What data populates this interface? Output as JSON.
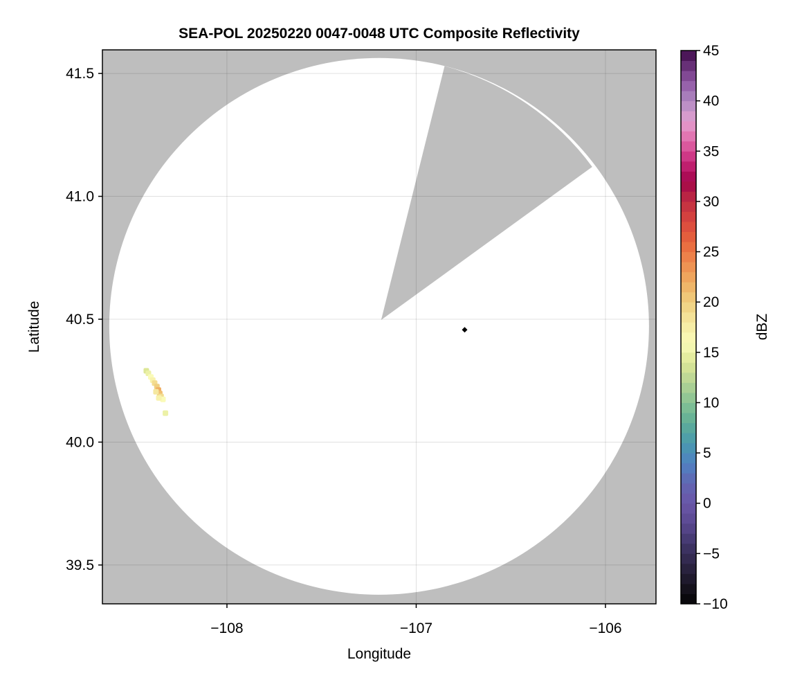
{
  "chart_data": {
    "type": "heatmap",
    "title": "SEA-POL 20250220 0047-0048 UTC Composite Reflectivity",
    "xlabel": "Longitude",
    "ylabel": "Latitude",
    "xlim": [
      -108.658,
      -105.733
    ],
    "ylim": [
      39.342,
      41.596
    ],
    "xticks": [
      -108,
      -107,
      -106
    ],
    "xtick_labels": [
      "−108",
      "−107",
      "−106"
    ],
    "yticks": [
      39.5,
      40.0,
      40.5,
      41.0,
      41.5
    ],
    "ytick_labels": [
      "39.5",
      "40.0",
      "40.5",
      "41.0",
      "41.5"
    ],
    "grid": true,
    "background_color": "#bebebe",
    "coverage_color": "#ffffff",
    "radar_coverage": {
      "center": [
        -107.196,
        40.471
      ],
      "radius_lon_deg": 1.426,
      "radius_lat_deg": 1.092
    },
    "blocked_sector": {
      "apex": [
        -107.185,
        40.497
      ],
      "edge_start": [
        -106.85,
        41.53
      ],
      "edge_end": [
        -106.07,
        41.12
      ]
    },
    "marker": {
      "lon": -106.744,
      "lat": 40.457,
      "shape": "diamond",
      "color": "#000000"
    },
    "echo_cells": [
      {
        "lon": -108.426,
        "lat": 40.29,
        "dbz": 14
      },
      {
        "lon": -108.415,
        "lat": 40.28,
        "dbz": 15
      },
      {
        "lon": -108.402,
        "lat": 40.265,
        "dbz": 16
      },
      {
        "lon": -108.392,
        "lat": 40.252,
        "dbz": 17
      },
      {
        "lon": -108.382,
        "lat": 40.24,
        "dbz": 19
      },
      {
        "lon": -108.37,
        "lat": 40.226,
        "dbz": 20
      },
      {
        "lon": -108.362,
        "lat": 40.212,
        "dbz": 22
      },
      {
        "lon": -108.355,
        "lat": 40.198,
        "dbz": 21
      },
      {
        "lon": -108.348,
        "lat": 40.186,
        "dbz": 19
      },
      {
        "lon": -108.338,
        "lat": 40.174,
        "dbz": 16
      },
      {
        "lon": -108.375,
        "lat": 40.205,
        "dbz": 18
      },
      {
        "lon": -108.36,
        "lat": 40.18,
        "dbz": 17
      },
      {
        "lon": -108.325,
        "lat": 40.118,
        "dbz": 15
      }
    ],
    "colorbar": {
      "label": "dBZ",
      "range": [
        -10,
        45
      ],
      "bin_width": 1,
      "ticks": [
        -10,
        -5,
        0,
        5,
        10,
        15,
        20,
        25,
        30,
        35,
        40,
        45
      ],
      "tick_labels": [
        "−10",
        "−5",
        "0",
        "5",
        "10",
        "15",
        "20",
        "25",
        "30",
        "35",
        "40",
        "45"
      ],
      "color_stops": [
        [
          -10,
          "#050505"
        ],
        [
          -8,
          "#1a1624"
        ],
        [
          -6,
          "#2e2647"
        ],
        [
          -4,
          "#40366a"
        ],
        [
          -2,
          "#5a4890"
        ],
        [
          0,
          "#6a56a8"
        ],
        [
          2,
          "#6266b2"
        ],
        [
          4,
          "#4f82c2"
        ],
        [
          6,
          "#4a9aae"
        ],
        [
          8,
          "#5fae97"
        ],
        [
          10,
          "#86c294"
        ],
        [
          12,
          "#b5d394"
        ],
        [
          14,
          "#dde796"
        ],
        [
          16,
          "#fafbb8"
        ],
        [
          18,
          "#f5e8a0"
        ],
        [
          20,
          "#f0cf7f"
        ],
        [
          22,
          "#efae62"
        ],
        [
          24,
          "#ee8a4e"
        ],
        [
          26,
          "#e8663c"
        ],
        [
          28,
          "#d9473e"
        ],
        [
          30,
          "#c02e42"
        ],
        [
          32,
          "#a3044a"
        ],
        [
          34,
          "#c8287a"
        ],
        [
          36,
          "#e068a8"
        ],
        [
          38,
          "#e3a0d0"
        ],
        [
          40,
          "#b08ac2"
        ],
        [
          42,
          "#8e55a3"
        ],
        [
          45,
          "#3f0a4a"
        ]
      ]
    }
  }
}
